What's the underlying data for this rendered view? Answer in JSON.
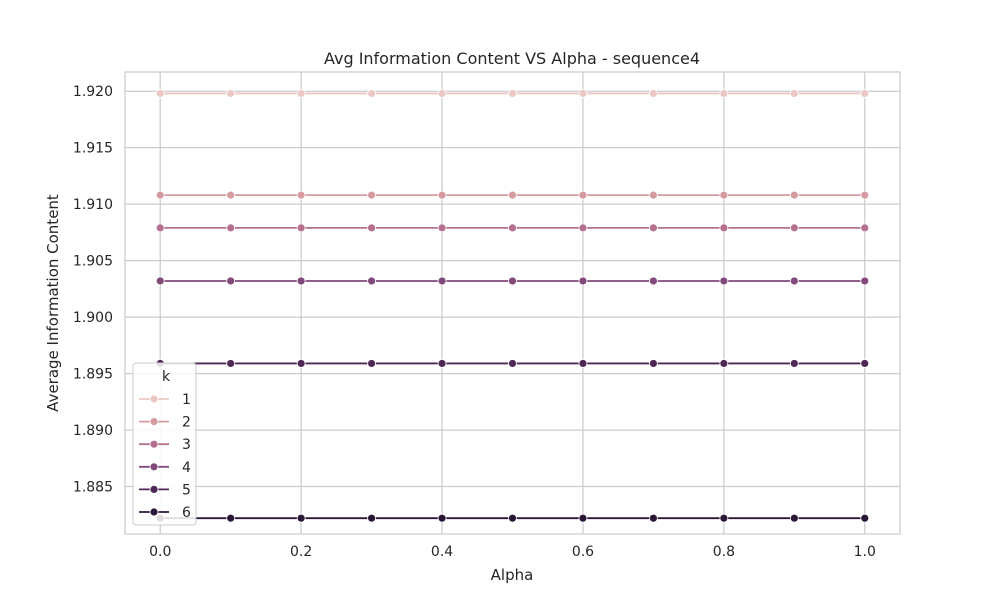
{
  "chart_data": {
    "type": "line",
    "title": "Avg Information Content VS Alpha - sequence4",
    "xlabel": "Alpha",
    "ylabel": "Average Information Content",
    "xlim": [
      -0.05,
      1.05
    ],
    "ylim": [
      1.8808,
      1.9217
    ],
    "xticks": [
      0.0,
      0.2,
      0.4,
      0.6,
      0.8,
      1.0
    ],
    "xtick_labels": [
      "0.0",
      "0.2",
      "0.4",
      "0.6",
      "0.8",
      "1.0"
    ],
    "yticks": [
      1.885,
      1.89,
      1.895,
      1.9,
      1.905,
      1.91,
      1.915,
      1.92
    ],
    "ytick_labels": [
      "1.885",
      "1.890",
      "1.895",
      "1.900",
      "1.905",
      "1.910",
      "1.915",
      "1.920"
    ],
    "grid": true,
    "legend": {
      "title": "k",
      "position": "center-left"
    },
    "x": [
      0.0,
      0.1,
      0.2,
      0.3,
      0.4,
      0.5,
      0.6,
      0.7,
      0.8,
      0.9,
      1.0
    ],
    "series": [
      {
        "name": "1",
        "color": "#ebc8c3",
        "values": [
          1.9198,
          1.9198,
          1.9198,
          1.9198,
          1.9198,
          1.9198,
          1.9198,
          1.9198,
          1.9198,
          1.9198,
          1.9198
        ]
      },
      {
        "name": "2",
        "color": "#d59ba1",
        "values": [
          1.9108,
          1.9108,
          1.9108,
          1.9108,
          1.9108,
          1.9108,
          1.9108,
          1.9108,
          1.9108,
          1.9108,
          1.9108
        ]
      },
      {
        "name": "3",
        "color": "#b4708f",
        "values": [
          1.9079,
          1.9079,
          1.9079,
          1.9079,
          1.9079,
          1.9079,
          1.9079,
          1.9079,
          1.9079,
          1.9079,
          1.9079
        ]
      },
      {
        "name": "4",
        "color": "#824a7a",
        "values": [
          1.9032,
          1.9032,
          1.9032,
          1.9032,
          1.9032,
          1.9032,
          1.9032,
          1.9032,
          1.9032,
          1.9032,
          1.9032
        ]
      },
      {
        "name": "5",
        "color": "#4f2757",
        "values": [
          1.8959,
          1.8959,
          1.8959,
          1.8959,
          1.8959,
          1.8959,
          1.8959,
          1.8959,
          1.8959,
          1.8959,
          1.8959
        ]
      },
      {
        "name": "6",
        "color": "#2a1636",
        "values": [
          1.8822,
          1.8822,
          1.8822,
          1.8822,
          1.8822,
          1.8822,
          1.8822,
          1.8822,
          1.8822,
          1.8822,
          1.8822
        ]
      }
    ]
  }
}
